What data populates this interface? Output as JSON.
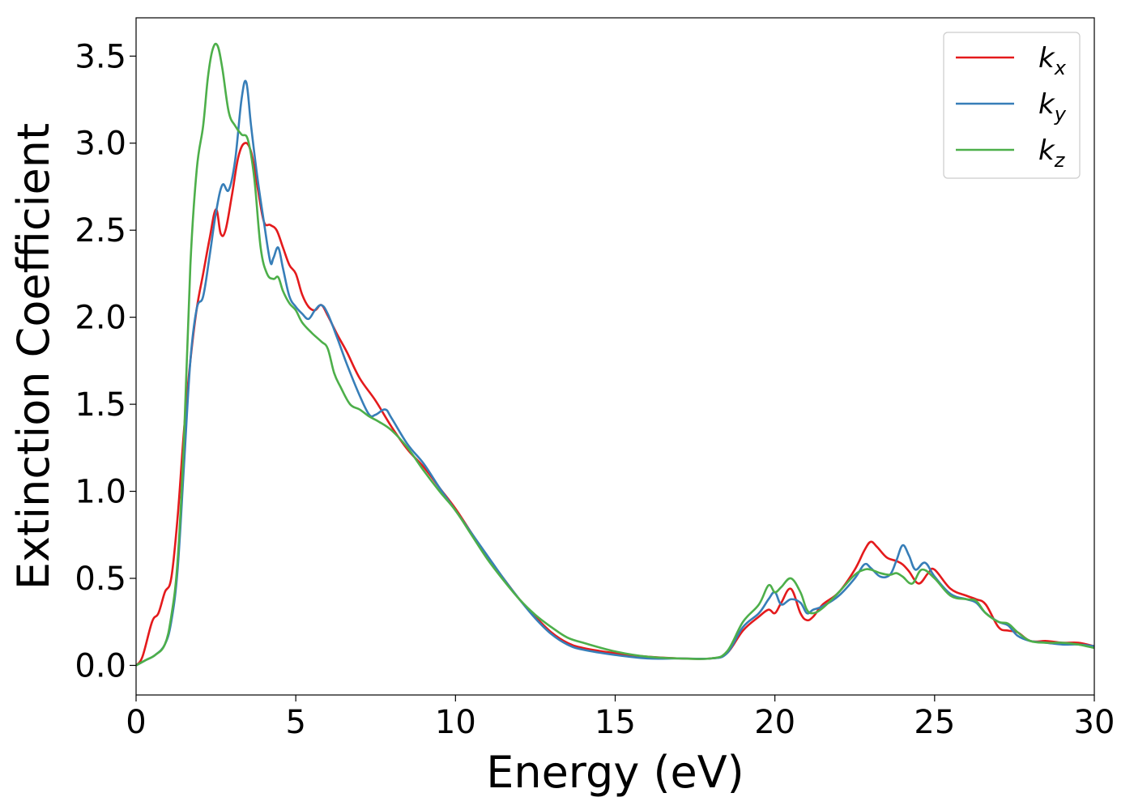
{
  "chart_data": {
    "type": "line",
    "title": "",
    "xlabel": "Energy (eV)",
    "ylabel": "Extinction Coefficient",
    "xlim": [
      0,
      30
    ],
    "ylim": [
      -0.17,
      3.72
    ],
    "xticks": [
      0,
      5,
      10,
      15,
      20,
      25,
      30
    ],
    "xtick_labels": [
      "0",
      "5",
      "10",
      "15",
      "20",
      "25",
      "30"
    ],
    "yticks": [
      0.0,
      0.5,
      1.0,
      1.5,
      2.0,
      2.5,
      3.0,
      3.5
    ],
    "ytick_labels": [
      "0.0",
      "0.5",
      "1.0",
      "1.5",
      "2.0",
      "2.5",
      "3.0",
      "3.5"
    ],
    "grid": false,
    "legend_position": "top-right",
    "series": [
      {
        "name": "k",
        "subscript": "x",
        "color": "#e41a1c",
        "x": [
          0,
          0.2,
          0.5,
          0.7,
          0.9,
          1.1,
          1.3,
          1.5,
          1.7,
          1.9,
          2.1,
          2.3,
          2.5,
          2.65,
          2.8,
          3.0,
          3.2,
          3.4,
          3.6,
          3.8,
          4.0,
          4.2,
          4.4,
          4.6,
          4.8,
          5.0,
          5.2,
          5.4,
          5.6,
          5.8,
          6.0,
          6.3,
          6.6,
          7.0,
          7.5,
          8.0,
          8.5,
          9.0,
          9.5,
          10.0,
          10.5,
          11.0,
          11.5,
          12.0,
          12.5,
          13.0,
          13.5,
          14.0,
          15.0,
          16.0,
          17.0,
          18.0,
          18.5,
          19.0,
          19.5,
          19.8,
          20.0,
          20.2,
          20.5,
          20.8,
          21.0,
          21.2,
          21.5,
          22.0,
          22.5,
          22.8,
          23.0,
          23.2,
          23.5,
          23.8,
          24.0,
          24.2,
          24.5,
          24.8,
          25.0,
          25.5,
          26.0,
          26.3,
          26.6,
          27.0,
          27.3,
          27.6,
          28.0,
          28.5,
          29.0,
          29.5,
          30.0
        ],
        "y": [
          0.0,
          0.05,
          0.25,
          0.3,
          0.42,
          0.5,
          0.85,
          1.35,
          1.75,
          2.05,
          2.25,
          2.45,
          2.62,
          2.48,
          2.5,
          2.7,
          2.92,
          3.0,
          2.95,
          2.75,
          2.55,
          2.53,
          2.5,
          2.4,
          2.3,
          2.25,
          2.13,
          2.06,
          2.04,
          2.07,
          2.01,
          1.9,
          1.8,
          1.65,
          1.52,
          1.37,
          1.24,
          1.14,
          1.02,
          0.9,
          0.76,
          0.62,
          0.5,
          0.38,
          0.28,
          0.19,
          0.13,
          0.1,
          0.07,
          0.05,
          0.04,
          0.04,
          0.07,
          0.2,
          0.28,
          0.32,
          0.3,
          0.36,
          0.44,
          0.3,
          0.26,
          0.28,
          0.35,
          0.42,
          0.55,
          0.66,
          0.71,
          0.68,
          0.62,
          0.6,
          0.58,
          0.54,
          0.47,
          0.53,
          0.55,
          0.44,
          0.4,
          0.38,
          0.35,
          0.22,
          0.2,
          0.19,
          0.14,
          0.14,
          0.13,
          0.13,
          0.11
        ]
      },
      {
        "name": "k",
        "subscript": "y",
        "color": "#377eb8",
        "x": [
          0,
          0.3,
          0.6,
          0.9,
          1.1,
          1.3,
          1.5,
          1.7,
          1.9,
          2.1,
          2.3,
          2.5,
          2.7,
          2.9,
          3.1,
          3.3,
          3.45,
          3.6,
          3.8,
          4.0,
          4.2,
          4.3,
          4.45,
          4.6,
          4.8,
          5.0,
          5.2,
          5.4,
          5.6,
          5.8,
          6.0,
          6.3,
          6.6,
          7.0,
          7.3,
          7.5,
          7.8,
          8.0,
          8.5,
          9.0,
          9.5,
          10.0,
          10.5,
          11.0,
          11.5,
          12.0,
          12.5,
          13.0,
          13.5,
          14.0,
          15.0,
          16.0,
          17.0,
          18.0,
          18.5,
          19.0,
          19.5,
          19.8,
          20.0,
          20.2,
          20.5,
          20.8,
          21.0,
          21.2,
          21.5,
          22.0,
          22.5,
          22.8,
          23.0,
          23.3,
          23.6,
          23.8,
          24.0,
          24.2,
          24.4,
          24.7,
          25.0,
          25.5,
          26.0,
          26.3,
          26.6,
          27.0,
          27.3,
          27.6,
          28.0,
          28.5,
          29.0,
          29.5,
          30.0
        ],
        "y": [
          0.0,
          0.03,
          0.06,
          0.12,
          0.25,
          0.55,
          1.15,
          1.75,
          2.05,
          2.12,
          2.35,
          2.6,
          2.76,
          2.73,
          2.9,
          3.25,
          3.35,
          3.1,
          2.8,
          2.55,
          2.32,
          2.34,
          2.4,
          2.28,
          2.12,
          2.06,
          2.02,
          1.99,
          2.04,
          2.07,
          2.02,
          1.88,
          1.73,
          1.55,
          1.44,
          1.44,
          1.47,
          1.42,
          1.27,
          1.16,
          1.02,
          0.89,
          0.76,
          0.63,
          0.5,
          0.38,
          0.27,
          0.18,
          0.12,
          0.09,
          0.06,
          0.04,
          0.04,
          0.04,
          0.07,
          0.22,
          0.3,
          0.38,
          0.42,
          0.35,
          0.38,
          0.36,
          0.3,
          0.32,
          0.34,
          0.4,
          0.5,
          0.58,
          0.56,
          0.51,
          0.52,
          0.6,
          0.69,
          0.63,
          0.55,
          0.59,
          0.51,
          0.41,
          0.38,
          0.36,
          0.3,
          0.25,
          0.23,
          0.17,
          0.14,
          0.13,
          0.12,
          0.12,
          0.11
        ]
      },
      {
        "name": "k",
        "subscript": "z",
        "color": "#4daf4a",
        "x": [
          0,
          0.3,
          0.6,
          0.9,
          1.1,
          1.3,
          1.5,
          1.7,
          1.9,
          2.1,
          2.25,
          2.4,
          2.55,
          2.7,
          2.9,
          3.1,
          3.3,
          3.5,
          3.7,
          3.9,
          4.1,
          4.3,
          4.45,
          4.6,
          4.8,
          5.0,
          5.2,
          5.5,
          5.8,
          6.0,
          6.2,
          6.4,
          6.7,
          7.0,
          7.3,
          7.6,
          8.0,
          8.5,
          9.0,
          9.5,
          10.0,
          10.5,
          11.0,
          11.5,
          12.0,
          12.5,
          13.0,
          13.5,
          14.0,
          15.0,
          16.0,
          17.0,
          18.0,
          18.5,
          19.0,
          19.5,
          19.8,
          20.0,
          20.2,
          20.5,
          20.8,
          21.0,
          21.2,
          21.5,
          22.0,
          22.5,
          22.8,
          23.0,
          23.3,
          23.6,
          23.8,
          24.0,
          24.3,
          24.6,
          25.0,
          25.5,
          26.0,
          26.3,
          26.6,
          27.0,
          27.3,
          27.6,
          28.0,
          28.5,
          29.0,
          29.5,
          30.0
        ],
        "y": [
          0.0,
          0.03,
          0.06,
          0.12,
          0.28,
          0.6,
          1.3,
          2.3,
          2.85,
          3.1,
          3.38,
          3.54,
          3.56,
          3.43,
          3.18,
          3.1,
          3.05,
          3.02,
          2.8,
          2.4,
          2.25,
          2.22,
          2.23,
          2.15,
          2.08,
          2.04,
          1.97,
          1.91,
          1.86,
          1.82,
          1.68,
          1.6,
          1.5,
          1.47,
          1.43,
          1.4,
          1.35,
          1.25,
          1.12,
          1.0,
          0.89,
          0.75,
          0.61,
          0.49,
          0.38,
          0.29,
          0.22,
          0.16,
          0.13,
          0.08,
          0.05,
          0.04,
          0.04,
          0.08,
          0.25,
          0.35,
          0.46,
          0.42,
          0.45,
          0.5,
          0.42,
          0.32,
          0.3,
          0.33,
          0.42,
          0.52,
          0.55,
          0.55,
          0.53,
          0.52,
          0.53,
          0.51,
          0.47,
          0.55,
          0.5,
          0.4,
          0.38,
          0.37,
          0.3,
          0.25,
          0.24,
          0.19,
          0.14,
          0.13,
          0.13,
          0.12,
          0.1
        ]
      }
    ]
  }
}
